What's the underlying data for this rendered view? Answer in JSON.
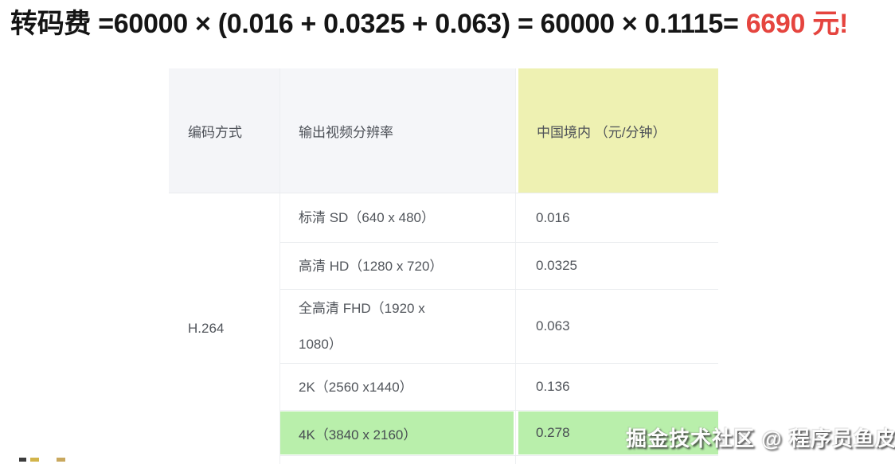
{
  "title": {
    "expression": "转码费 =60000 × (0.016 + 0.0325 + 0.063) = 60000 × 0.1115= ",
    "result": "6690 元!"
  },
  "table": {
    "headers": {
      "codec": "编码方式",
      "resolution": "输出视频分辨率",
      "price_cn": "中国境内 （元/分钟）"
    },
    "codec": "H.264",
    "rows": [
      {
        "resolution": "标清 SD（640 x 480）",
        "price": "0.016",
        "highlight": false
      },
      {
        "resolution": "高清 HD（1280 x 720）",
        "price": "0.0325",
        "highlight": false
      },
      {
        "resolution": "全高清 FHD（1920 x 1080）",
        "price": "0.063",
        "highlight": false
      },
      {
        "resolution": "2K（2560 x1440）",
        "price": "0.136",
        "highlight": false
      },
      {
        "resolution": "4K（3840 x 2160）",
        "price": "0.278",
        "highlight": true
      }
    ]
  },
  "watermark": "掘金技术社区 @ 程序员鱼皮",
  "colors": {
    "result_red": "#e5443e",
    "header_grey": "#f4f5f8",
    "highlight_yellow": "#eef1b2",
    "highlight_green": "#b9efab",
    "border": "#e9ebee"
  }
}
